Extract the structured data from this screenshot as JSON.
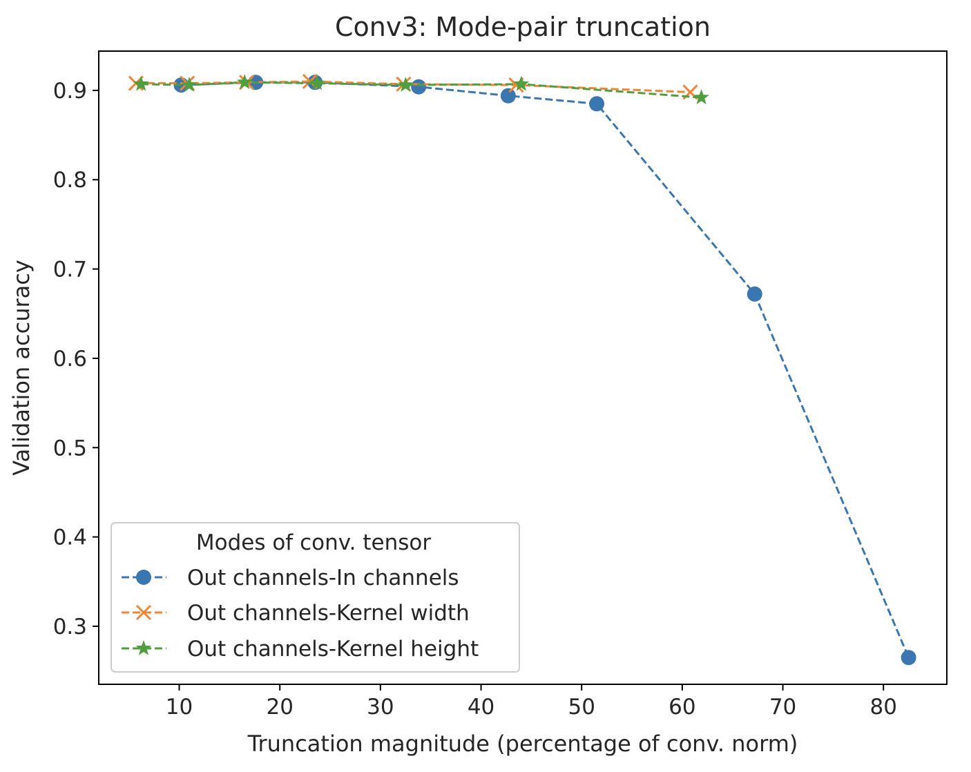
{
  "chart_data": {
    "type": "line",
    "title": "Conv3: Mode-pair truncation",
    "xlabel": "Truncation magnitude (percentage of conv. norm)",
    "ylabel": "Validation accuracy",
    "xlim": [
      2,
      86.3
    ],
    "ylim": [
      0.235,
      0.944
    ],
    "xticks": [
      "10",
      "20",
      "30",
      "40",
      "50",
      "60",
      "70",
      "80"
    ],
    "xtick_values": [
      10,
      20,
      30,
      40,
      50,
      60,
      70,
      80
    ],
    "yticks": [
      "0.3",
      "0.4",
      "0.5",
      "0.6",
      "0.7",
      "0.8",
      "0.9"
    ],
    "ytick_values": [
      0.3,
      0.4,
      0.5,
      0.6,
      0.7,
      0.8,
      0.9
    ],
    "grid": false,
    "legend": {
      "title": "Modes of conv. tensor",
      "placement": "lower-left"
    },
    "series": [
      {
        "name": "Out channels-In channels",
        "color": "#3a76af",
        "marker": "circle",
        "line_style": "dashed",
        "x": [
          10.2,
          17.6,
          23.5,
          33.8,
          42.7,
          51.5,
          67.2,
          82.5
        ],
        "y": [
          0.906,
          0.909,
          0.909,
          0.904,
          0.894,
          0.885,
          0.672,
          0.265
        ]
      },
      {
        "name": "Out channels-Kernel width",
        "color": "#ef8636",
        "marker": "x",
        "line_style": "dashed",
        "x": [
          5.7,
          10.8,
          16.7,
          23.0,
          32.3,
          43.5,
          60.8
        ],
        "y": [
          0.908,
          0.908,
          0.909,
          0.91,
          0.907,
          0.906,
          0.898
        ]
      },
      {
        "name": "Out channels-Kernel height",
        "color": "#519e3e",
        "marker": "star",
        "line_style": "dashed",
        "x": [
          6.2,
          11.0,
          16.5,
          23.7,
          32.5,
          44.0,
          61.9
        ],
        "y": [
          0.907,
          0.906,
          0.909,
          0.908,
          0.906,
          0.907,
          0.892
        ]
      }
    ]
  }
}
